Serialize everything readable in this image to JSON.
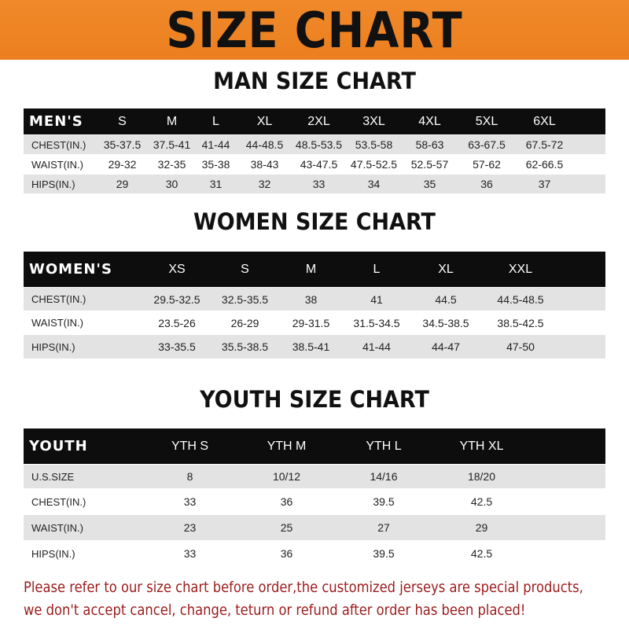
{
  "banner_title": "SIZE CHART",
  "colors": {
    "banner": "#ec7f1f",
    "table_header": "#0d0d0d",
    "row_stripe": "#e3e3e3",
    "note_text": "#9b1a1a"
  },
  "men": {
    "title": "MAN SIZE CHART",
    "header": [
      "MEN'S",
      "S",
      "M",
      "L",
      "XL",
      "2XL",
      "3XL",
      "4XL",
      "5XL",
      "6XL"
    ],
    "rows": [
      [
        "CHEST(IN.)",
        "35-37.5",
        "37.5-41",
        "41-44",
        "44-48.5",
        "48.5-53.5",
        "53.5-58",
        "58-63",
        "63-67.5",
        "67.5-72"
      ],
      [
        "WAIST(IN.)",
        "29-32",
        "32-35",
        "35-38",
        "38-43",
        "43-47.5",
        "47.5-52.5",
        "52.5-57",
        "57-62",
        "62-66.5"
      ],
      [
        "HIPS(IN.)",
        "29",
        "30",
        "31",
        "32",
        "33",
        "34",
        "35",
        "36",
        "37"
      ]
    ]
  },
  "women": {
    "title": "WOMEN SIZE CHART",
    "header": [
      "WOMEN'S",
      "XS",
      "S",
      "M",
      "L",
      "XL",
      "XXL"
    ],
    "rows": [
      [
        "CHEST(IN.)",
        "29.5-32.5",
        "32.5-35.5",
        "38",
        "41",
        "44.5",
        "44.5-48.5"
      ],
      [
        "WAIST(IN.)",
        "23.5-26",
        "26-29",
        "29-31.5",
        "31.5-34.5",
        "34.5-38.5",
        "38.5-42.5"
      ],
      [
        "HIPS(IN.)",
        "33-35.5",
        "35.5-38.5",
        "38.5-41",
        "41-44",
        "44-47",
        "47-50"
      ]
    ]
  },
  "youth": {
    "title": "YOUTH SIZE CHART",
    "header": [
      "YOUTH",
      "YTH S",
      "YTH M",
      "YTH L",
      "YTH XL"
    ],
    "rows": [
      [
        "U.S.SIZE",
        "8",
        "10/12",
        "14/16",
        "18/20"
      ],
      [
        "CHEST(IN.)",
        "33",
        "36",
        "39.5",
        "42.5"
      ],
      [
        "WAIST(IN.)",
        "23",
        "25",
        "27",
        "29"
      ],
      [
        "HIPS(IN.)",
        "33",
        "36",
        "39.5",
        "42.5"
      ]
    ]
  },
  "note": [
    "Please refer to our size chart before order,the customized jerseys are special products,",
    "we don't accept cancel, change, teturn or refund after order has been placed!"
  ]
}
